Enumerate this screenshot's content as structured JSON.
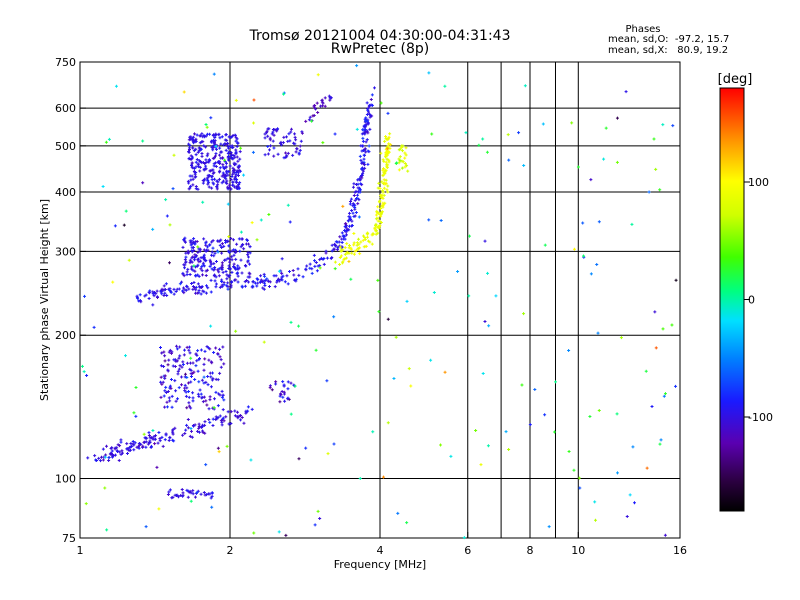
{
  "chart_data": {
    "type": "scatter",
    "title": "Tromsø 20121004 04:30:00-04:31:43",
    "subtitle": "RwPretec (8p)",
    "xlabel": "Frequency [MHz]",
    "ylabel": "Stationary phase Virtual Height [km]",
    "x_scale": "log",
    "y_scale": "log",
    "xlim": [
      1,
      16
    ],
    "ylim": [
      75,
      750
    ],
    "x_ticks": [
      1,
      2,
      4,
      6,
      8,
      10,
      16
    ],
    "x_tick_labels": [
      "1",
      "2",
      "4",
      "6",
      "8",
      "10",
      "16"
    ],
    "x_grid": [
      2,
      4,
      6,
      7,
      8,
      9,
      10
    ],
    "y_ticks": [
      75,
      100,
      200,
      300,
      400,
      500,
      600,
      750
    ],
    "y_tick_labels": [
      "75",
      "100",
      "200",
      "300",
      "400",
      "500",
      "600",
      "750"
    ],
    "y_grid": [
      100,
      200,
      300,
      400,
      500,
      600
    ],
    "grid": true,
    "stats": {
      "header": "Phases",
      "line1": "mean, sd,O:  -97.2, 15.7",
      "line2": "mean, sd,X:   80.9, 19.2"
    },
    "colorbar": {
      "label": "[deg]",
      "range": [
        -180,
        180
      ],
      "ticks": [
        100,
        0,
        -100
      ],
      "tick_labels": [
        "100",
        "0",
        "-100"
      ]
    },
    "clusters": [
      {
        "type": "curve",
        "pts": [
          [
            1.3,
            240
          ],
          [
            1.5,
            248
          ],
          [
            1.7,
            252
          ],
          [
            2.0,
            255
          ],
          [
            2.3,
            258
          ],
          [
            2.6,
            264
          ],
          [
            2.9,
            276
          ],
          [
            3.1,
            290
          ],
          [
            3.3,
            310
          ],
          [
            3.5,
            350
          ],
          [
            3.6,
            400
          ],
          [
            3.7,
            450
          ],
          [
            3.75,
            520
          ],
          [
            3.8,
            600
          ],
          [
            3.85,
            640
          ]
        ],
        "n": 360,
        "sf": 0.015,
        "sy": 0.03,
        "phase": [
          -95,
          15
        ]
      },
      {
        "type": "box",
        "x": [
          1.6,
          2.2
        ],
        "y": [
          265,
          320
        ],
        "n": 220,
        "phase": [
          -98,
          12
        ]
      },
      {
        "type": "box",
        "x": [
          1.65,
          2.1
        ],
        "y": [
          405,
          530
        ],
        "n": 330,
        "phase": [
          -98,
          10
        ]
      },
      {
        "type": "box",
        "x": [
          2.35,
          2.8
        ],
        "y": [
          470,
          545
        ],
        "n": 60,
        "phase": [
          -100,
          12
        ]
      },
      {
        "type": "curve",
        "pts": [
          [
            2.85,
            560
          ],
          [
            3.0,
            600
          ],
          [
            3.2,
            640
          ]
        ],
        "n": 25,
        "sf": 0.015,
        "sy": 0.03,
        "phase": [
          -110,
          12
        ]
      },
      {
        "type": "curve",
        "pts": [
          [
            3.3,
            290
          ],
          [
            3.5,
            300
          ],
          [
            3.7,
            315
          ],
          [
            3.9,
            330
          ],
          [
            4.0,
            360
          ],
          [
            4.05,
            400
          ],
          [
            4.1,
            450
          ],
          [
            4.15,
            520
          ]
        ],
        "n": 170,
        "sf": 0.015,
        "sy": 0.04,
        "phase": [
          90,
          12
        ]
      },
      {
        "type": "box",
        "x": [
          4.35,
          4.55
        ],
        "y": [
          440,
          500
        ],
        "n": 22,
        "phase": [
          80,
          20
        ]
      },
      {
        "type": "curve",
        "pts": [
          [
            1.05,
            108
          ],
          [
            1.2,
            115
          ],
          [
            1.4,
            120
          ],
          [
            1.6,
            126
          ],
          [
            1.8,
            130
          ],
          [
            2.0,
            135
          ],
          [
            2.2,
            140
          ]
        ],
        "n": 170,
        "sf": 0.02,
        "sy": 0.035,
        "phase": [
          -100,
          15
        ]
      },
      {
        "type": "box",
        "x": [
          1.45,
          1.95
        ],
        "y": [
          140,
          190
        ],
        "n": 170,
        "phase": [
          -100,
          22
        ]
      },
      {
        "type": "box",
        "x": [
          2.4,
          2.75
        ],
        "y": [
          145,
          160
        ],
        "n": 25,
        "phase": [
          -105,
          25
        ]
      },
      {
        "type": "box",
        "x": [
          1.5,
          1.85
        ],
        "y": [
          91,
          95
        ],
        "n": 35,
        "phase": [
          -100,
          10
        ]
      },
      {
        "type": "box",
        "x": [
          1.0,
          16.0
        ],
        "y": [
          75,
          750
        ],
        "n": 230,
        "phase": [
          0,
          120
        ]
      }
    ]
  }
}
